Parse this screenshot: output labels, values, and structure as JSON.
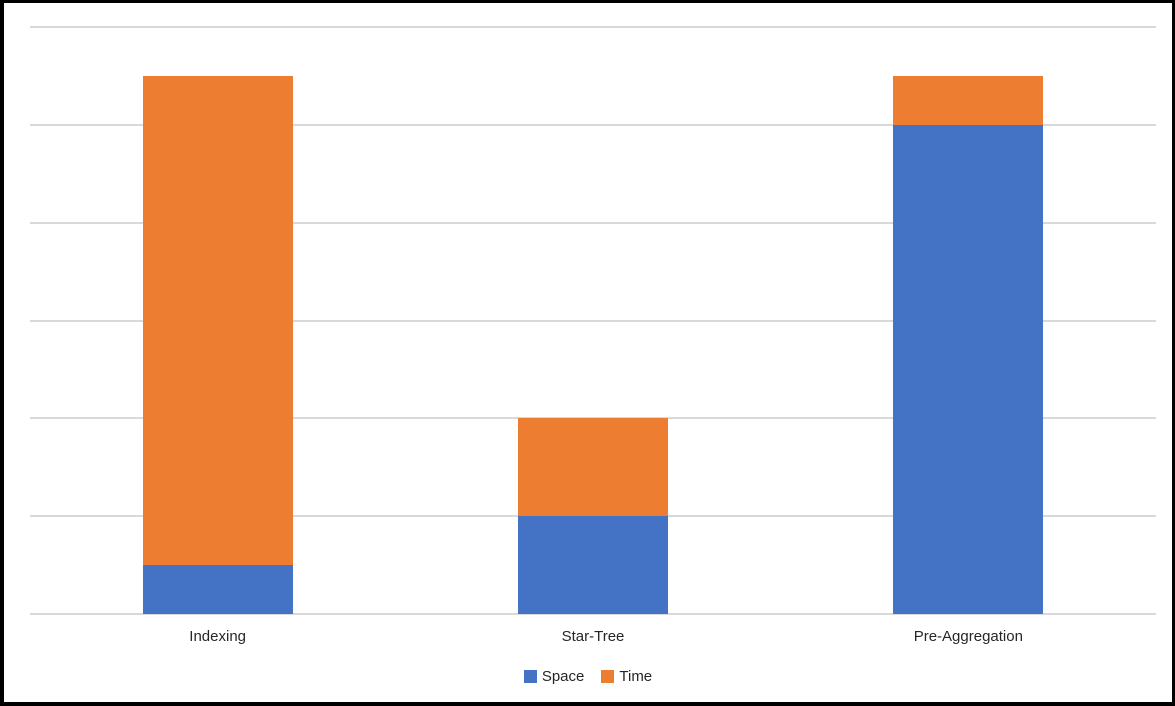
{
  "chart_data": {
    "type": "bar",
    "subtype": "stacked-column",
    "title": "",
    "xlabel": "",
    "ylabel": "",
    "categories": [
      "Indexing",
      "Star-Tree",
      "Pre-Aggregation"
    ],
    "series": [
      {
        "name": "Space",
        "color": "#4472C4",
        "values": [
          0.5,
          1,
          5
        ]
      },
      {
        "name": "Time",
        "color": "#ED7D31",
        "values": [
          5,
          1,
          0.5
        ]
      }
    ],
    "ylim": [
      0,
      6
    ],
    "gridline_step": 1,
    "grid": true,
    "y_tick_labels_visible": false,
    "legend_position": "bottom",
    "colors": {
      "gridline": "#D9D9D9",
      "axis_line": "#D9D9D9",
      "label_text": "#262626",
      "background": "#FFFFFF",
      "frame_border": "#000000"
    }
  }
}
